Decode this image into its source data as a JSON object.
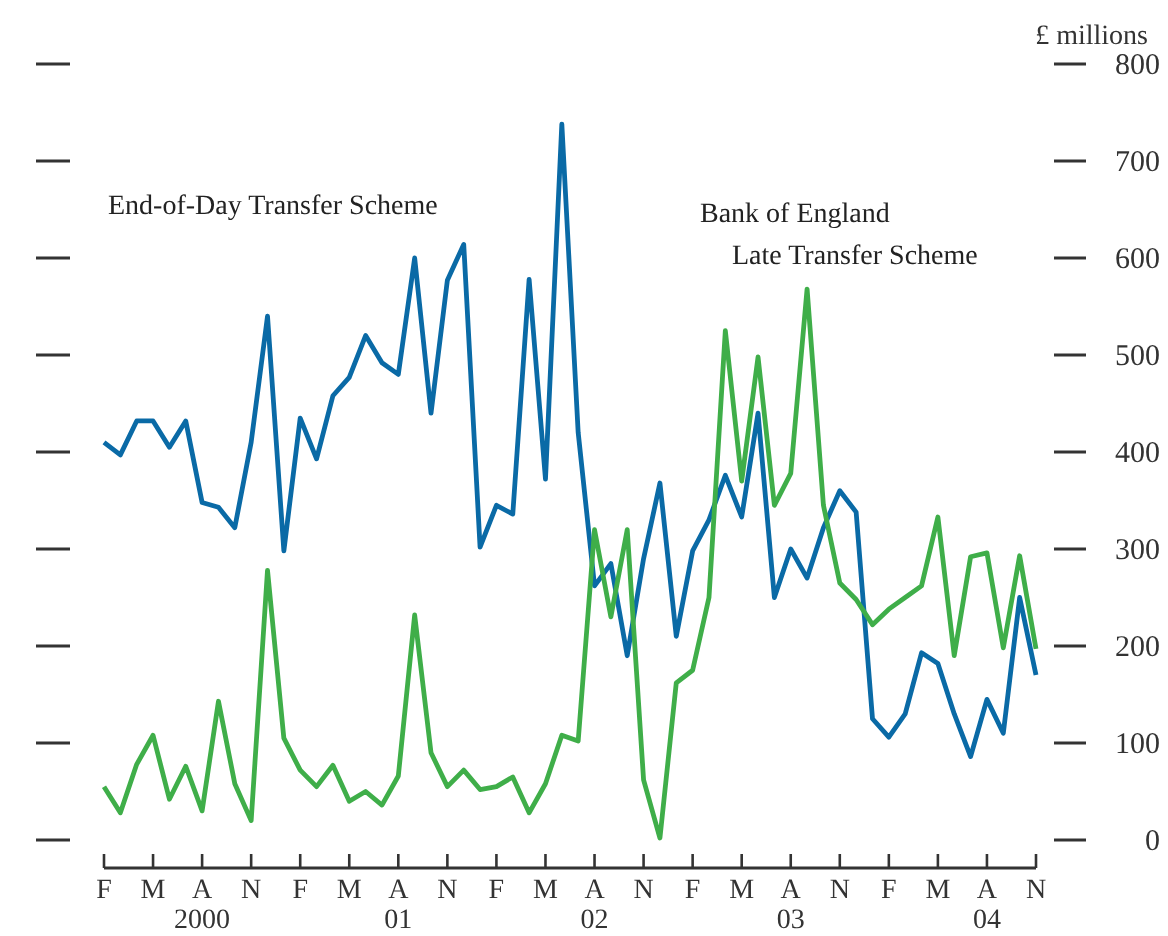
{
  "chart_data": {
    "type": "line",
    "ylabel": "£ millions",
    "categories": [
      "F",
      null,
      null,
      "M",
      null,
      null,
      "A\n2000",
      null,
      null,
      "N",
      null,
      null,
      "F",
      null,
      null,
      "M",
      null,
      null,
      "A\n01",
      null,
      null,
      "N",
      null,
      null,
      "F",
      null,
      null,
      "M",
      null,
      null,
      "A\n02",
      null,
      null,
      "N",
      null,
      null,
      "F",
      null,
      null,
      "M",
      null,
      null,
      "A\n03",
      null,
      null,
      "N",
      null,
      null,
      "F",
      null,
      null,
      "M",
      null,
      null,
      "A\n04",
      null,
      null,
      "N"
    ],
    "series": [
      {
        "name": "End-of-Day Transfer Scheme",
        "color": "#0a6aa6",
        "values": [
          410,
          397,
          432,
          432,
          405,
          432,
          348,
          343,
          322,
          410,
          540,
          298,
          435,
          393,
          458,
          477,
          520,
          492,
          480,
          600,
          440,
          577,
          614,
          302,
          345,
          336,
          578,
          372,
          738,
          420,
          262,
          285,
          190,
          290,
          368,
          210,
          298,
          330,
          376,
          333,
          440,
          250,
          300,
          270,
          322,
          360,
          338,
          125,
          106,
          130,
          193,
          182,
          130,
          86,
          145,
          110,
          250,
          170
        ]
      },
      {
        "name": "Bank of England\nLate Transfer Scheme",
        "color": "#3fae49",
        "values": [
          55,
          28,
          78,
          108,
          42,
          76,
          30,
          143,
          58,
          20,
          278,
          105,
          72,
          55,
          77,
          40,
          50,
          36,
          66,
          232,
          90,
          55,
          72,
          52,
          55,
          65,
          28,
          58,
          108,
          102,
          320,
          230,
          320,
          62,
          2,
          162,
          175,
          250,
          525,
          370,
          498,
          345,
          378,
          568,
          345,
          265,
          248,
          222,
          238,
          250,
          262,
          333,
          190,
          292,
          296,
          198,
          293,
          197
        ]
      }
    ],
    "ylim": [
      0,
      800
    ],
    "yticks": [
      0,
      100,
      200,
      300,
      400,
      500,
      600,
      700,
      800
    ],
    "grid": false,
    "marker": "none",
    "line_style": "solid"
  }
}
